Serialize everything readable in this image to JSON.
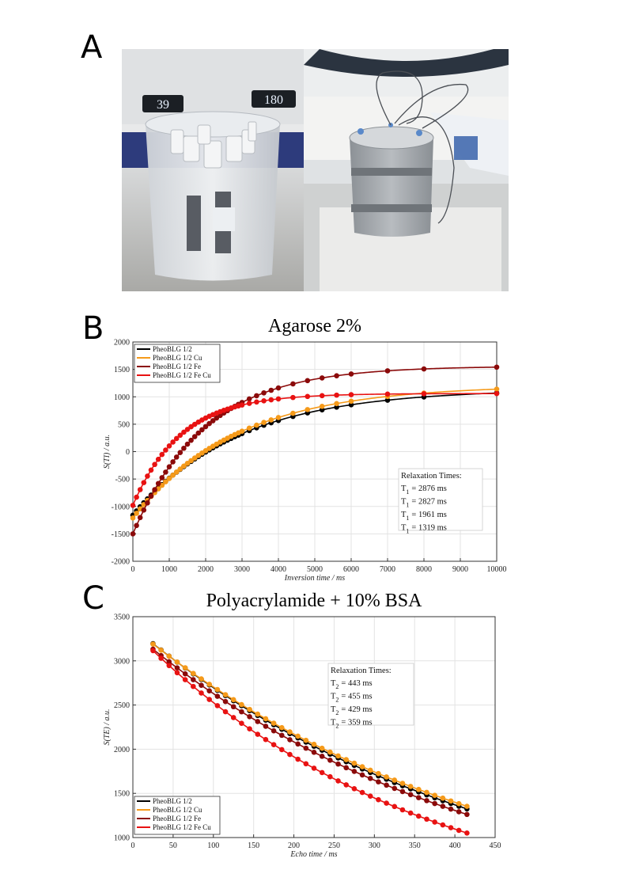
{
  "panels": {
    "a": "A",
    "b": "B",
    "c": "C"
  },
  "photo_left": {
    "heat_display": "39",
    "rpm_display": "180"
  },
  "chart_data": [
    {
      "type": "scatter",
      "title": "Agarose 2%",
      "xlabel": "Inversion time / ms",
      "ylabel": "S(TI) / a.u.",
      "xlim": [
        0,
        10000
      ],
      "ylim": [
        -2000,
        2000
      ],
      "xticks": [
        0,
        1000,
        2000,
        3000,
        4000,
        5000,
        6000,
        7000,
        8000,
        9000,
        10000
      ],
      "yticks": [
        -2000,
        -1500,
        -1000,
        -500,
        0,
        500,
        1000,
        1500,
        2000
      ],
      "grid": true,
      "legend_position": "top-left",
      "series": [
        {
          "name": "PheoBLG 1/2",
          "color": "#000000",
          "A": 1140,
          "B": 2300,
          "T": 2876,
          "marker_x": [
            0,
            100,
            200,
            300,
            400,
            500,
            600,
            700,
            800,
            900,
            1000,
            1100,
            1200,
            1300,
            1400,
            1500,
            1600,
            1700,
            1800,
            1900,
            2000,
            2100,
            2200,
            2300,
            2400,
            2500,
            2600,
            2700,
            2800,
            2900,
            3000,
            3200,
            3400,
            3600,
            3800,
            4000,
            4400,
            4800,
            5200,
            5600,
            6000,
            7000,
            8000,
            10000
          ]
        },
        {
          "name": "PheoBLG 1/2 Cu",
          "color": "#f59a1a",
          "A": 1210,
          "B": 2420,
          "T": 2827,
          "marker_x": [
            0,
            100,
            200,
            300,
            400,
            500,
            600,
            700,
            800,
            900,
            1000,
            1100,
            1200,
            1300,
            1400,
            1500,
            1600,
            1700,
            1800,
            1900,
            2000,
            2100,
            2200,
            2300,
            2400,
            2500,
            2600,
            2700,
            2800,
            2900,
            3000,
            3200,
            3400,
            3600,
            3800,
            4000,
            4400,
            4800,
            5200,
            5600,
            6000,
            7000,
            8000,
            10000
          ]
        },
        {
          "name": "PheoBLG 1/2 Fe",
          "color": "#8b0a0a",
          "A": 1560,
          "B": 3060,
          "T": 1961,
          "marker_x": [
            0,
            100,
            200,
            300,
            400,
            500,
            600,
            700,
            800,
            900,
            1000,
            1100,
            1200,
            1300,
            1400,
            1500,
            1600,
            1700,
            1800,
            1900,
            2000,
            2100,
            2200,
            2300,
            2400,
            2500,
            2600,
            2700,
            2800,
            2900,
            3000,
            3200,
            3400,
            3600,
            3800,
            4000,
            4400,
            4800,
            5200,
            5600,
            6000,
            7000,
            8000,
            10000
          ]
        },
        {
          "name": "PheoBLG 1/2 Fe Cu",
          "color": "#e81212",
          "A": 1060,
          "B": 2040,
          "T": 1319,
          "marker_x": [
            0,
            100,
            200,
            300,
            400,
            500,
            600,
            700,
            800,
            900,
            1000,
            1100,
            1200,
            1300,
            1400,
            1500,
            1600,
            1700,
            1800,
            1900,
            2000,
            2100,
            2200,
            2300,
            2400,
            2500,
            2600,
            2700,
            2800,
            2900,
            3000,
            3200,
            3400,
            3600,
            3800,
            4000,
            4400,
            4800,
            5200,
            5600,
            6000,
            7000,
            8000,
            10000
          ]
        }
      ],
      "annotation": {
        "header": "Relaxation Times:",
        "symbol": "T",
        "subscript": "1",
        "lines": [
          "= 2876 ms",
          "= 2827 ms",
          "= 1961 ms",
          "= 1319 ms"
        ]
      }
    },
    {
      "type": "scatter",
      "title": "Polyacrylamide + 10% BSA",
      "xlabel": "Echo time / ms",
      "ylabel": "S(TE) / a.u.",
      "xlim": [
        0,
        450
      ],
      "ylim": [
        1000,
        3500
      ],
      "xticks": [
        0,
        50,
        100,
        150,
        200,
        250,
        300,
        350,
        400,
        450
      ],
      "yticks": [
        1000,
        1500,
        2000,
        2500,
        3000,
        3500
      ],
      "grid": true,
      "legend_position": "bottom-left",
      "series": [
        {
          "name": "PheoBLG 1/2",
          "color": "#000000",
          "S0": 3380,
          "T": 443,
          "marker_x": [
            25,
            35,
            45,
            55,
            65,
            75,
            85,
            95,
            105,
            115,
            125,
            135,
            145,
            155,
            165,
            175,
            185,
            195,
            205,
            215,
            225,
            235,
            245,
            255,
            265,
            275,
            285,
            295,
            305,
            315,
            325,
            335,
            345,
            355,
            365,
            375,
            385,
            395,
            405,
            415
          ]
        },
        {
          "name": "PheoBLG 1/2 Cu",
          "color": "#f59a1a",
          "S0": 3370,
          "T": 455,
          "marker_x": [
            25,
            35,
            45,
            55,
            65,
            75,
            85,
            95,
            105,
            115,
            125,
            135,
            145,
            155,
            165,
            175,
            185,
            195,
            205,
            215,
            225,
            235,
            245,
            255,
            265,
            275,
            285,
            295,
            305,
            315,
            325,
            335,
            345,
            355,
            365,
            375,
            385,
            395,
            405,
            415
          ]
        },
        {
          "name": "PheoBLG 1/2 Fe",
          "color": "#8b0a0a",
          "S0": 3320,
          "T": 429,
          "marker_x": [
            25,
            35,
            45,
            55,
            65,
            75,
            85,
            95,
            105,
            115,
            125,
            135,
            145,
            155,
            165,
            175,
            185,
            195,
            205,
            215,
            225,
            235,
            245,
            255,
            265,
            275,
            285,
            295,
            305,
            315,
            325,
            335,
            345,
            355,
            365,
            375,
            385,
            395,
            405,
            415
          ]
        },
        {
          "name": "PheoBLG 1/2 Fe Cu",
          "color": "#e81212",
          "S0": 3340,
          "T": 359,
          "marker_x": [
            25,
            35,
            45,
            55,
            65,
            75,
            85,
            95,
            105,
            115,
            125,
            135,
            145,
            155,
            165,
            175,
            185,
            195,
            205,
            215,
            225,
            235,
            245,
            255,
            265,
            275,
            285,
            295,
            305,
            315,
            325,
            335,
            345,
            355,
            365,
            375,
            385,
            395,
            405,
            415
          ]
        }
      ],
      "annotation": {
        "header": "Relaxation Times:",
        "symbol": "T",
        "subscript": "2",
        "lines": [
          "= 443 ms",
          "= 455 ms",
          "= 429 ms",
          "= 359 ms"
        ]
      }
    }
  ]
}
